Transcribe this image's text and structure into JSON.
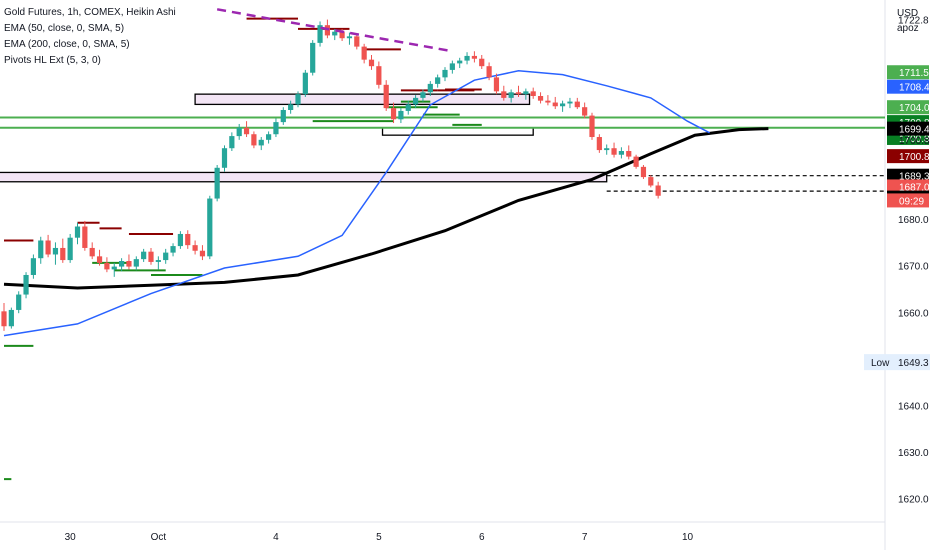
{
  "chart_data": {
    "type": "candlestick",
    "title": "Gold Futures, 1h, COMEX, Heikin Ashi",
    "indicators": [
      "EMA (50, close, 0, SMA, 5)",
      "EMA (200, close, 0, SMA, 5)",
      "Pivots HL Ext (5, 3, 0)"
    ],
    "currency_label": "USD",
    "currency_sublabel": "apoz",
    "y_axis": {
      "ylim": [
        1615,
        1727
      ],
      "ticks": [
        {
          "value": 1722.8,
          "label": "1722.8"
        },
        {
          "value": 1700.8,
          "label": "1700.8"
        },
        {
          "value": 1680.0,
          "label": "1680.0"
        },
        {
          "value": 1670.0,
          "label": "1670.0"
        },
        {
          "value": 1660.0,
          "label": "1660.0"
        },
        {
          "value": 1650.0,
          "label": "1650.0"
        },
        {
          "value": 1640.0,
          "label": "1640.0"
        },
        {
          "value": 1630.0,
          "label": "1630.0"
        },
        {
          "value": 1620.0,
          "label": "1620.0"
        }
      ]
    },
    "x_axis": {
      "ticks": [
        {
          "i": 9,
          "label": "30"
        },
        {
          "i": 21,
          "label": "Oct"
        },
        {
          "i": 37,
          "label": "4"
        },
        {
          "i": 51,
          "label": "5"
        },
        {
          "i": 65,
          "label": "6"
        },
        {
          "i": 79,
          "label": "7"
        },
        {
          "i": 93,
          "label": "10"
        }
      ]
    },
    "price_tags": [
      {
        "value": 1711.5,
        "label": "1711.5",
        "color": "#4caf50"
      },
      {
        "value": 1708.4,
        "label": "1708.4",
        "color": "#2962ff"
      },
      {
        "value": 1704.0,
        "label": "1704.0",
        "color": "#4caf50"
      },
      {
        "value": 1700.8,
        "label": "1700.8",
        "color": "#087f23"
      },
      {
        "value": 1697.4,
        "label": "1700.8",
        "color": "#087f23"
      },
      {
        "value": 1693.5,
        "label": "1700.8",
        "color": "#8b0000"
      },
      {
        "value": 1699.4,
        "label": "1699.4",
        "color": "#000000"
      },
      {
        "value": 1689.3,
        "label": "1689.3",
        "color": "#000000"
      },
      {
        "value": 1687.0,
        "label": "1687.0",
        "color": "#ef5350"
      },
      {
        "value": 1684.6,
        "label": "1684.6",
        "color": "#000000"
      }
    ],
    "plain_tag": {
      "value": 1697.0,
      "label": "1700.8"
    },
    "countdown": "09:29",
    "low_marker": {
      "value": 1649.3,
      "label": "Low",
      "price": "1649.3"
    },
    "ohlc": [
      [
        1660.2,
        1662.0,
        1656.0,
        1657.0
      ],
      [
        1657.0,
        1661.0,
        1656.5,
        1660.5
      ],
      [
        1660.5,
        1664.5,
        1659.8,
        1663.8
      ],
      [
        1663.8,
        1668.6,
        1663.0,
        1668.0
      ],
      [
        1668.0,
        1672.4,
        1667.2,
        1671.6
      ],
      [
        1671.6,
        1676.2,
        1670.4,
        1675.4
      ],
      [
        1675.4,
        1676.6,
        1671.8,
        1672.4
      ],
      [
        1672.4,
        1675.0,
        1670.2,
        1673.8
      ],
      [
        1673.8,
        1675.8,
        1670.6,
        1671.2
      ],
      [
        1671.2,
        1676.8,
        1670.6,
        1676.0
      ],
      [
        1676.0,
        1679.2,
        1674.6,
        1678.4
      ],
      [
        1678.4,
        1679.6,
        1673.2,
        1673.8
      ],
      [
        1673.8,
        1675.0,
        1671.4,
        1672.0
      ],
      [
        1672.0,
        1673.4,
        1670.0,
        1670.6
      ],
      [
        1670.6,
        1671.8,
        1668.6,
        1669.2
      ],
      [
        1669.2,
        1670.6,
        1667.6,
        1669.8
      ],
      [
        1669.8,
        1671.6,
        1668.8,
        1671.0
      ],
      [
        1671.0,
        1672.4,
        1669.2,
        1669.8
      ],
      [
        1669.8,
        1672.0,
        1669.0,
        1671.4
      ],
      [
        1671.4,
        1673.6,
        1670.8,
        1673.0
      ],
      [
        1673.0,
        1673.8,
        1670.2,
        1670.8
      ],
      [
        1670.8,
        1672.0,
        1669.2,
        1671.2
      ],
      [
        1671.2,
        1673.6,
        1670.4,
        1672.8
      ],
      [
        1672.8,
        1674.8,
        1672.0,
        1674.2
      ],
      [
        1674.2,
        1677.4,
        1673.6,
        1676.8
      ],
      [
        1676.8,
        1677.6,
        1673.6,
        1674.4
      ],
      [
        1674.4,
        1675.4,
        1672.4,
        1673.2
      ],
      [
        1673.2,
        1674.4,
        1671.2,
        1672.0
      ],
      [
        1672.0,
        1685.0,
        1671.4,
        1684.4
      ],
      [
        1684.4,
        1691.6,
        1683.8,
        1691.0
      ],
      [
        1691.0,
        1695.8,
        1690.2,
        1695.2
      ],
      [
        1695.2,
        1698.6,
        1694.6,
        1697.8
      ],
      [
        1697.8,
        1700.4,
        1697.0,
        1699.6
      ],
      [
        1699.6,
        1701.0,
        1697.6,
        1698.2
      ],
      [
        1698.2,
        1698.8,
        1695.2,
        1695.8
      ],
      [
        1695.8,
        1697.6,
        1694.8,
        1697.0
      ],
      [
        1697.0,
        1698.8,
        1696.2,
        1698.2
      ],
      [
        1698.2,
        1701.6,
        1697.6,
        1700.8
      ],
      [
        1700.8,
        1704.0,
        1700.2,
        1703.4
      ],
      [
        1703.4,
        1705.4,
        1702.6,
        1704.6
      ],
      [
        1704.6,
        1707.4,
        1704.0,
        1706.8
      ],
      [
        1706.8,
        1712.0,
        1706.2,
        1711.4
      ],
      [
        1711.4,
        1718.4,
        1710.8,
        1717.8
      ],
      [
        1717.8,
        1722.4,
        1717.0,
        1721.6
      ],
      [
        1721.6,
        1722.8,
        1718.8,
        1719.4
      ],
      [
        1719.4,
        1720.8,
        1718.4,
        1720.2
      ],
      [
        1720.2,
        1720.8,
        1718.2,
        1718.8
      ],
      [
        1718.8,
        1720.0,
        1717.4,
        1719.2
      ],
      [
        1719.2,
        1719.8,
        1716.4,
        1717.0
      ],
      [
        1717.0,
        1717.6,
        1713.4,
        1714.2
      ],
      [
        1714.2,
        1715.2,
        1712.0,
        1712.8
      ],
      [
        1712.8,
        1713.8,
        1708.0,
        1708.8
      ],
      [
        1708.8,
        1709.8,
        1703.2,
        1703.8
      ],
      [
        1703.8,
        1705.0,
        1700.6,
        1701.4
      ],
      [
        1701.4,
        1703.8,
        1700.6,
        1703.2
      ],
      [
        1703.2,
        1705.4,
        1702.4,
        1704.6
      ],
      [
        1704.6,
        1706.6,
        1703.8,
        1706.0
      ],
      [
        1706.0,
        1707.8,
        1705.2,
        1707.2
      ],
      [
        1707.2,
        1709.6,
        1706.4,
        1709.0
      ],
      [
        1709.0,
        1711.0,
        1708.2,
        1710.4
      ],
      [
        1710.4,
        1712.6,
        1709.6,
        1712.0
      ],
      [
        1712.0,
        1714.0,
        1711.2,
        1713.4
      ],
      [
        1713.4,
        1714.6,
        1712.4,
        1714.0
      ],
      [
        1714.0,
        1715.8,
        1713.2,
        1715.0
      ],
      [
        1715.0,
        1716.0,
        1713.6,
        1714.4
      ],
      [
        1714.4,
        1715.2,
        1712.2,
        1712.8
      ],
      [
        1712.8,
        1713.6,
        1709.8,
        1710.4
      ],
      [
        1710.4,
        1711.2,
        1706.8,
        1707.4
      ],
      [
        1707.4,
        1708.6,
        1705.4,
        1706.0
      ],
      [
        1706.0,
        1707.8,
        1705.0,
        1707.2
      ],
      [
        1707.2,
        1708.6,
        1706.2,
        1706.8
      ],
      [
        1706.8,
        1708.0,
        1705.6,
        1707.4
      ],
      [
        1707.4,
        1708.2,
        1705.8,
        1706.4
      ],
      [
        1706.4,
        1707.2,
        1704.8,
        1705.4
      ],
      [
        1705.4,
        1706.6,
        1704.4,
        1705.0
      ],
      [
        1705.0,
        1706.2,
        1703.6,
        1704.2
      ],
      [
        1704.2,
        1705.4,
        1703.0,
        1704.8
      ],
      [
        1704.8,
        1706.0,
        1703.8,
        1705.2
      ],
      [
        1705.2,
        1706.0,
        1703.6,
        1704.0
      ],
      [
        1704.0,
        1705.0,
        1701.6,
        1702.2
      ],
      [
        1702.2,
        1702.8,
        1697.0,
        1697.6
      ],
      [
        1697.6,
        1698.2,
        1694.2,
        1694.8
      ],
      [
        1694.8,
        1696.0,
        1693.8,
        1695.2
      ],
      [
        1695.2,
        1696.4,
        1693.2,
        1693.8
      ],
      [
        1693.8,
        1695.4,
        1693.0,
        1694.6
      ],
      [
        1694.6,
        1695.8,
        1692.8,
        1693.4
      ],
      [
        1693.4,
        1693.8,
        1690.8,
        1691.2
      ],
      [
        1691.2,
        1691.6,
        1688.6,
        1689.0
      ],
      [
        1689.0,
        1689.4,
        1686.8,
        1687.2
      ],
      [
        1687.2,
        1688.0,
        1684.4,
        1685.0
      ]
    ],
    "ema50": [
      [
        0,
        1655.0
      ],
      [
        10,
        1657.5
      ],
      [
        20,
        1664.0
      ],
      [
        30,
        1669.5
      ],
      [
        40,
        1672.0
      ],
      [
        46,
        1676.5
      ],
      [
        52,
        1690.0
      ],
      [
        58,
        1704.5
      ],
      [
        64,
        1709.8
      ],
      [
        70,
        1711.8
      ],
      [
        76,
        1711.0
      ],
      [
        82,
        1708.6
      ],
      [
        88,
        1706.0
      ],
      [
        93,
        1701.0
      ],
      [
        96,
        1698.5
      ]
    ],
    "ema200": [
      [
        0,
        1666.0
      ],
      [
        10,
        1665.2
      ],
      [
        20,
        1665.8
      ],
      [
        30,
        1666.4
      ],
      [
        40,
        1668.0
      ],
      [
        50,
        1672.5
      ],
      [
        60,
        1677.5
      ],
      [
        70,
        1684.0
      ],
      [
        80,
        1688.5
      ],
      [
        88,
        1694.0
      ],
      [
        94,
        1698.0
      ],
      [
        100,
        1699.2
      ],
      [
        104,
        1699.4
      ]
    ],
    "trendline": {
      "from": [
        29,
        1725.0
      ],
      "to": [
        61,
        1716.0
      ]
    },
    "zones": [
      {
        "from": 26,
        "to": 71.5,
        "high": 1706.8,
        "low": 1704.6,
        "fill": "#f3e5f5"
      },
      {
        "from": 51.5,
        "to": 72,
        "high": 1699.6,
        "low": 1698.0,
        "fill": "#ffffff"
      },
      {
        "from": -1,
        "to": 82,
        "high": 1690.0,
        "low": 1688.0,
        "fill": "#f3e5f5"
      }
    ],
    "support_lines": [
      1701.8,
      1699.6
    ],
    "dashed_lines": [
      1689.3,
      1686.0
    ],
    "pivot_highs": [
      [
        [
          0,
          4
        ],
        1675.4
      ],
      [
        [
          10,
          13
        ],
        1679.2
      ],
      [
        [
          13,
          16
        ],
        1678.0
      ],
      [
        [
          17,
          23
        ],
        1676.8
      ],
      [
        [
          33,
          40
        ],
        1723.0
      ],
      [
        [
          40,
          47
        ],
        1720.8
      ],
      [
        [
          49,
          54
        ],
        1716.4
      ],
      [
        [
          54,
          59
        ],
        1707.6
      ],
      [
        [
          59,
          64
        ],
        1707.6
      ],
      [
        [
          60,
          65
        ],
        1707.8
      ]
    ],
    "pivot_lows": [
      [
        [
          0,
          4
        ],
        1652.8
      ],
      [
        [
          12,
          17
        ],
        1670.6
      ],
      [
        [
          15,
          22
        ],
        1669.0
      ],
      [
        [
          20,
          27
        ],
        1668.0
      ],
      [
        [
          42,
          53
        ],
        1701.0
      ],
      [
        [
          52,
          59
        ],
        1704.0
      ],
      [
        [
          54,
          58
        ],
        1705.2
      ],
      [
        [
          57,
          62
        ],
        1702.4
      ],
      [
        [
          61,
          65
        ],
        1700.2
      ],
      [
        [
          0,
          1
        ],
        1624.2
      ]
    ]
  }
}
